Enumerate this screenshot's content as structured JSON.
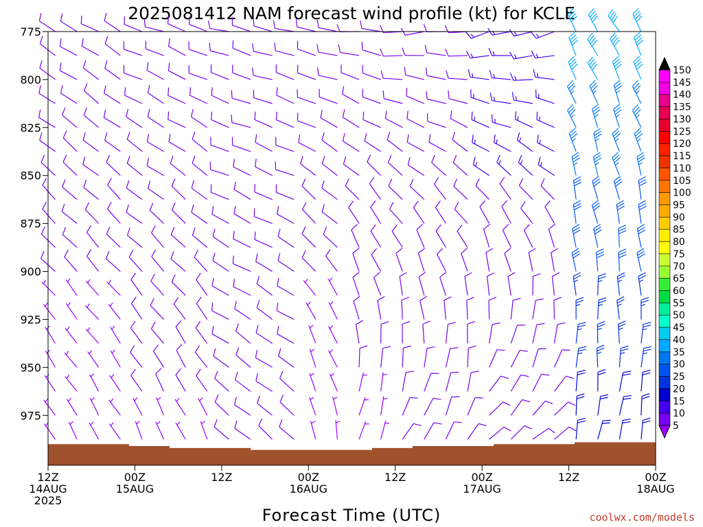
{
  "chart_data": {
    "type": "wind-barb-profile",
    "title": "2025081412 NAM forecast wind profile (kt) for KCLE",
    "xlabel": "Forecast Time (UTC)",
    "credit": "coolwx.com/models",
    "y_ticks": [
      "775",
      "800",
      "825",
      "850",
      "875",
      "900",
      "925",
      "950",
      "975"
    ],
    "ylim_hpa": [
      775,
      1001
    ],
    "x_ticks": [
      {
        "line1": "12Z",
        "line2": "14AUG",
        "line3": "2025"
      },
      {
        "line1": "00Z",
        "line2": "15AUG",
        "line3": ""
      },
      {
        "line1": "12Z",
        "line2": "",
        "line3": ""
      },
      {
        "line1": "00Z",
        "line2": "16AUG",
        "line3": ""
      },
      {
        "line1": "12Z",
        "line2": "",
        "line3": ""
      },
      {
        "line1": "00Z",
        "line2": "17AUG",
        "line3": ""
      },
      {
        "line1": "12Z",
        "line2": "",
        "line3": ""
      },
      {
        "line1": "00Z",
        "line2": "18AUG",
        "line3": ""
      }
    ],
    "x_hours": [
      0,
      84
    ],
    "levels_hpa": [
      775,
      787.5,
      800,
      812.5,
      825,
      837.5,
      850,
      862.5,
      875,
      887.5,
      900,
      912.5,
      925,
      937.5,
      950,
      962.5,
      975,
      987.5
    ],
    "colorbar": {
      "labels": [
        "150",
        "145",
        "140",
        "135",
        "130",
        "125",
        "120",
        "115",
        "110",
        "105",
        "100",
        "95",
        "90",
        "85",
        "80",
        "75",
        "70",
        "65",
        "60",
        "55",
        "50",
        "45",
        "40",
        "35",
        "30",
        "25",
        "20",
        "15",
        "10",
        "5"
      ],
      "colors": [
        "#ff00ff",
        "#f200e6",
        "#e6008c",
        "#e60050",
        "#e6002d",
        "#ff0000",
        "#ff2200",
        "#ee3300",
        "#ff5500",
        "#ff7700",
        "#ff9900",
        "#ffaa00",
        "#ffcc00",
        "#ffee00",
        "#ffff00",
        "#ccff33",
        "#99ff33",
        "#33ee33",
        "#00dd44",
        "#00ee99",
        "#00ffcc",
        "#00ccee",
        "#00aaff",
        "#0077ee",
        "#0055ee",
        "#0033dd",
        "#0000cc",
        "#4400ee",
        "#7700ee",
        "#9900ff"
      ]
    },
    "terrain_color": "#a0522d",
    "terrain_surface_hpa": [
      990,
      990,
      991,
      992,
      992,
      993,
      993,
      993,
      992,
      991,
      991,
      990,
      990,
      989,
      989
    ],
    "time_segments": [
      {
        "h0": 0,
        "h1": 12,
        "dir_top": 300,
        "dir_low": 330,
        "spd_top": 10,
        "spd_low": 6
      },
      {
        "h0": 12,
        "h1": 24,
        "dir_top": 290,
        "dir_low": 335,
        "spd_top": 12,
        "spd_low": 7
      },
      {
        "h0": 24,
        "h1": 36,
        "dir_top": 285,
        "dir_low": 310,
        "spd_top": 12,
        "spd_low": 8
      },
      {
        "h0": 36,
        "h1": 42,
        "dir_top": 280,
        "dir_low": 350,
        "spd_top": 10,
        "spd_low": 6
      },
      {
        "h0": 42,
        "h1": 48,
        "dir_top": 275,
        "dir_low": 20,
        "spd_top": 10,
        "spd_low": 7
      },
      {
        "h0": 48,
        "h1": 60,
        "dir_top": 265,
        "dir_low": 30,
        "spd_top": 12,
        "spd_low": 8
      },
      {
        "h0": 60,
        "h1": 72,
        "dir_top": 255,
        "dir_low": 50,
        "spd_top": 14,
        "spd_low": 10
      },
      {
        "h0": 72,
        "h1": 84,
        "dir_top": 330,
        "dir_low": 10,
        "spd_top": 40,
        "spd_low": 20
      }
    ]
  }
}
